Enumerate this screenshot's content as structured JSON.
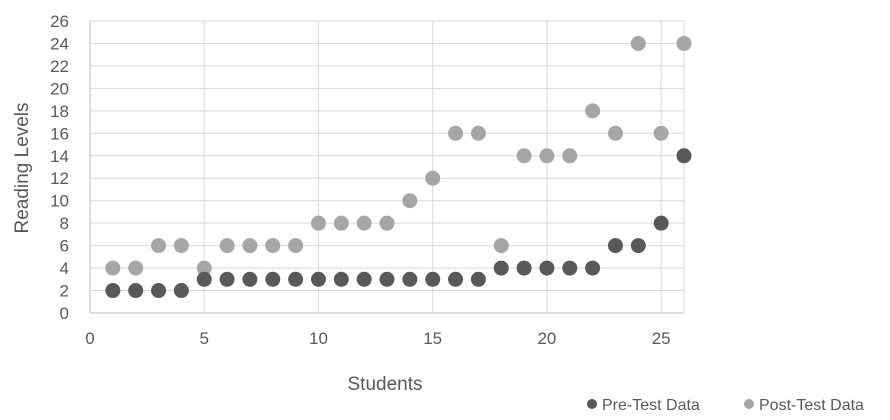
{
  "chart_data": {
    "type": "scatter",
    "title": "",
    "xlabel": "Students",
    "ylabel": "Reading Levels",
    "xlim": [
      0,
      26
    ],
    "ylim": [
      0,
      26
    ],
    "x_ticks": [
      0,
      5,
      10,
      15,
      20,
      25
    ],
    "y_ticks": [
      0,
      2,
      4,
      6,
      8,
      10,
      12,
      14,
      16,
      18,
      20,
      22,
      24,
      26
    ],
    "grid": true,
    "legend_position": "bottom-right",
    "series": [
      {
        "name": "Pre-Test Data",
        "color": "#595959",
        "x": [
          1,
          2,
          3,
          4,
          5,
          6,
          7,
          8,
          9,
          10,
          11,
          12,
          13,
          14,
          15,
          16,
          17,
          18,
          19,
          20,
          21,
          22,
          23,
          24,
          25,
          26
        ],
        "y": [
          2,
          2,
          2,
          2,
          3,
          3,
          3,
          3,
          3,
          3,
          3,
          3,
          3,
          3,
          3,
          3,
          3,
          4,
          4,
          4,
          4,
          4,
          6,
          6,
          8,
          14
        ]
      },
      {
        "name": "Post-Test Data",
        "color": "#a6a6a6",
        "x": [
          1,
          2,
          3,
          4,
          5,
          6,
          7,
          8,
          9,
          10,
          11,
          12,
          13,
          14,
          15,
          16,
          17,
          18,
          19,
          20,
          21,
          22,
          23,
          24,
          25,
          26
        ],
        "y": [
          4,
          4,
          6,
          6,
          4,
          6,
          6,
          6,
          6,
          8,
          8,
          8,
          8,
          10,
          12,
          16,
          16,
          6,
          14,
          14,
          14,
          18,
          16,
          24,
          16,
          24
        ]
      }
    ]
  }
}
